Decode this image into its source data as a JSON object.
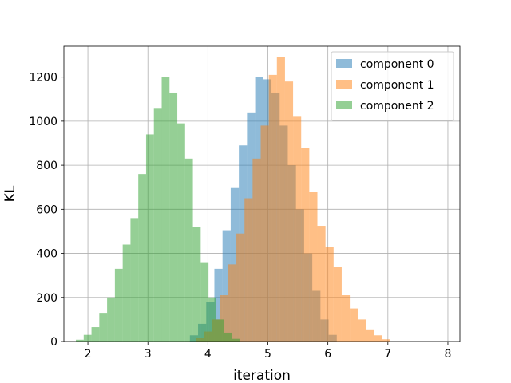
{
  "chart_data": {
    "type": "histogram",
    "title": "",
    "xlabel": "iteration",
    "ylabel": "KL",
    "xlim": [
      1.6,
      8.2
    ],
    "ylim": [
      0,
      1340
    ],
    "xticks": [
      2,
      3,
      4,
      5,
      6,
      7,
      8
    ],
    "yticks": [
      0,
      200,
      400,
      600,
      800,
      1000,
      1200
    ],
    "grid": true,
    "legend_position": "top-right",
    "series": [
      {
        "name": "component 0",
        "color": "#1f77b4",
        "alpha": 0.5,
        "bins": [
          [
            3.7,
            3.836,
            28
          ],
          [
            3.836,
            3.972,
            80
          ],
          [
            3.972,
            4.108,
            180
          ],
          [
            4.108,
            4.244,
            330
          ],
          [
            4.244,
            4.38,
            505
          ],
          [
            4.38,
            4.516,
            700
          ],
          [
            4.516,
            4.652,
            890
          ],
          [
            4.652,
            4.788,
            1040
          ],
          [
            4.788,
            4.924,
            1200
          ],
          [
            4.924,
            5.06,
            1190
          ],
          [
            5.06,
            5.196,
            1130
          ],
          [
            5.196,
            5.332,
            980
          ],
          [
            5.332,
            5.468,
            800
          ],
          [
            5.468,
            5.604,
            600
          ],
          [
            5.604,
            5.74,
            400
          ],
          [
            5.74,
            5.876,
            230
          ],
          [
            5.876,
            6.012,
            100
          ],
          [
            6.012,
            6.148,
            30
          ]
        ]
      },
      {
        "name": "component 1",
        "color": "#ff7f0e",
        "alpha": 0.5,
        "bins": [
          [
            3.8,
            3.935,
            18
          ],
          [
            3.935,
            4.07,
            45
          ],
          [
            4.07,
            4.205,
            100
          ],
          [
            4.205,
            4.34,
            210
          ],
          [
            4.34,
            4.475,
            350
          ],
          [
            4.475,
            4.61,
            490
          ],
          [
            4.61,
            4.745,
            650
          ],
          [
            4.745,
            4.88,
            830
          ],
          [
            4.88,
            5.015,
            980
          ],
          [
            5.015,
            5.15,
            1210
          ],
          [
            5.15,
            5.285,
            1290
          ],
          [
            5.285,
            5.42,
            1180
          ],
          [
            5.42,
            5.555,
            1020
          ],
          [
            5.555,
            5.69,
            880
          ],
          [
            5.69,
            5.825,
            680
          ],
          [
            5.825,
            5.96,
            525
          ],
          [
            5.96,
            6.095,
            430
          ],
          [
            6.095,
            6.23,
            340
          ],
          [
            6.23,
            6.365,
            210
          ],
          [
            6.365,
            6.5,
            150
          ],
          [
            6.5,
            6.635,
            100
          ],
          [
            6.635,
            6.77,
            55
          ],
          [
            6.77,
            6.905,
            28
          ],
          [
            6.905,
            7.04,
            10
          ]
        ]
      },
      {
        "name": "component 2",
        "color": "#2ca02c",
        "alpha": 0.5,
        "bins": [
          [
            1.8,
            1.93,
            8
          ],
          [
            1.93,
            2.06,
            30
          ],
          [
            2.06,
            2.19,
            65
          ],
          [
            2.19,
            2.32,
            130
          ],
          [
            2.32,
            2.45,
            200
          ],
          [
            2.45,
            2.58,
            330
          ],
          [
            2.58,
            2.71,
            440
          ],
          [
            2.71,
            2.84,
            560
          ],
          [
            2.84,
            2.97,
            760
          ],
          [
            2.97,
            3.1,
            940
          ],
          [
            3.1,
            3.23,
            1060
          ],
          [
            3.23,
            3.36,
            1200
          ],
          [
            3.36,
            3.49,
            1130
          ],
          [
            3.49,
            3.62,
            990
          ],
          [
            3.62,
            3.75,
            830
          ],
          [
            3.75,
            3.88,
            520
          ],
          [
            3.88,
            4.01,
            360
          ],
          [
            4.01,
            4.14,
            200
          ],
          [
            4.14,
            4.27,
            100
          ],
          [
            4.27,
            4.4,
            40
          ],
          [
            4.4,
            4.53,
            12
          ]
        ]
      }
    ]
  }
}
